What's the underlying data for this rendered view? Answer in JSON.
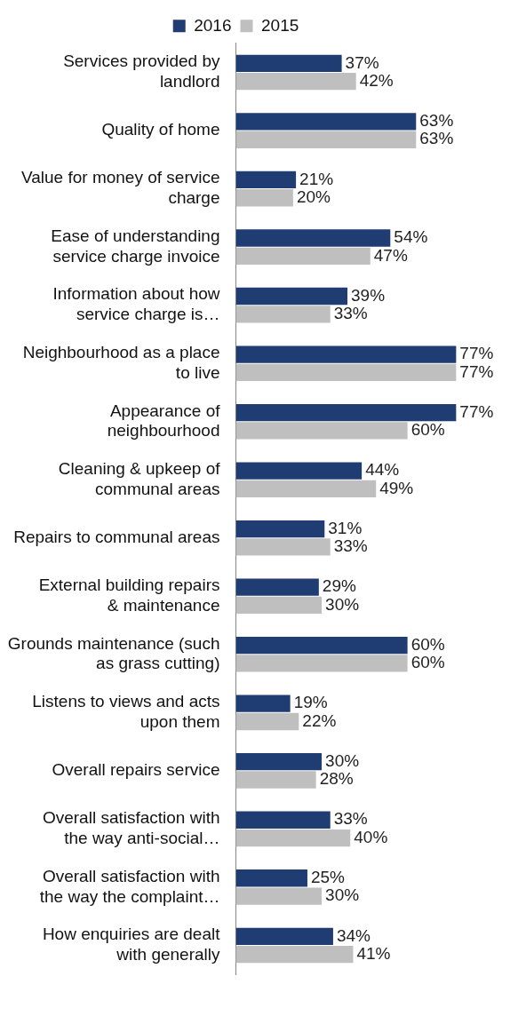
{
  "chart_data": {
    "type": "bar",
    "orientation": "horizontal",
    "categories": [
      "Services provided by landlord",
      "Quality of home",
      "Value for money of service charge",
      "Ease of understanding service charge invoice",
      "Information about how service charge is…",
      "Neighbourhood as a place to live",
      "Appearance of neighbourhood",
      "Cleaning & upkeep of communal areas",
      "Repairs to communal areas",
      "External building repairs & maintenance",
      "Grounds maintenance (such as grass cutting)",
      "Listens to views and acts upon them",
      "Overall repairs service",
      "Overall satisfaction with the way anti-social…",
      "Overall satisfaction with the way the complaint…",
      "How enquiries are dealt with generally"
    ],
    "series": [
      {
        "name": "2016",
        "color": "#1f3d73",
        "values": [
          37,
          63,
          21,
          54,
          39,
          77,
          77,
          44,
          31,
          29,
          60,
          19,
          30,
          33,
          25,
          34
        ],
        "value_labels": [
          "37%",
          "63%",
          "21%",
          "54%",
          "39%",
          "77%",
          "77%",
          "44%",
          "31%",
          "29%",
          "60%",
          "19%",
          "30%",
          "33%",
          "25%",
          "34%"
        ]
      },
      {
        "name": "2015",
        "color": "#bfbfbf",
        "values": [
          42,
          63,
          20,
          47,
          33,
          77,
          60,
          49,
          33,
          30,
          60,
          22,
          28,
          40,
          30,
          41
        ],
        "value_labels": [
          "42%",
          "63%",
          "20%",
          "47%",
          "33%",
          "77%",
          "60%",
          "49%",
          "33%",
          "30%",
          "60%",
          "22%",
          "28%",
          "40%",
          "30%",
          "41%"
        ]
      }
    ],
    "legend": "top",
    "grid": false,
    "tick_labels": "y"
  }
}
